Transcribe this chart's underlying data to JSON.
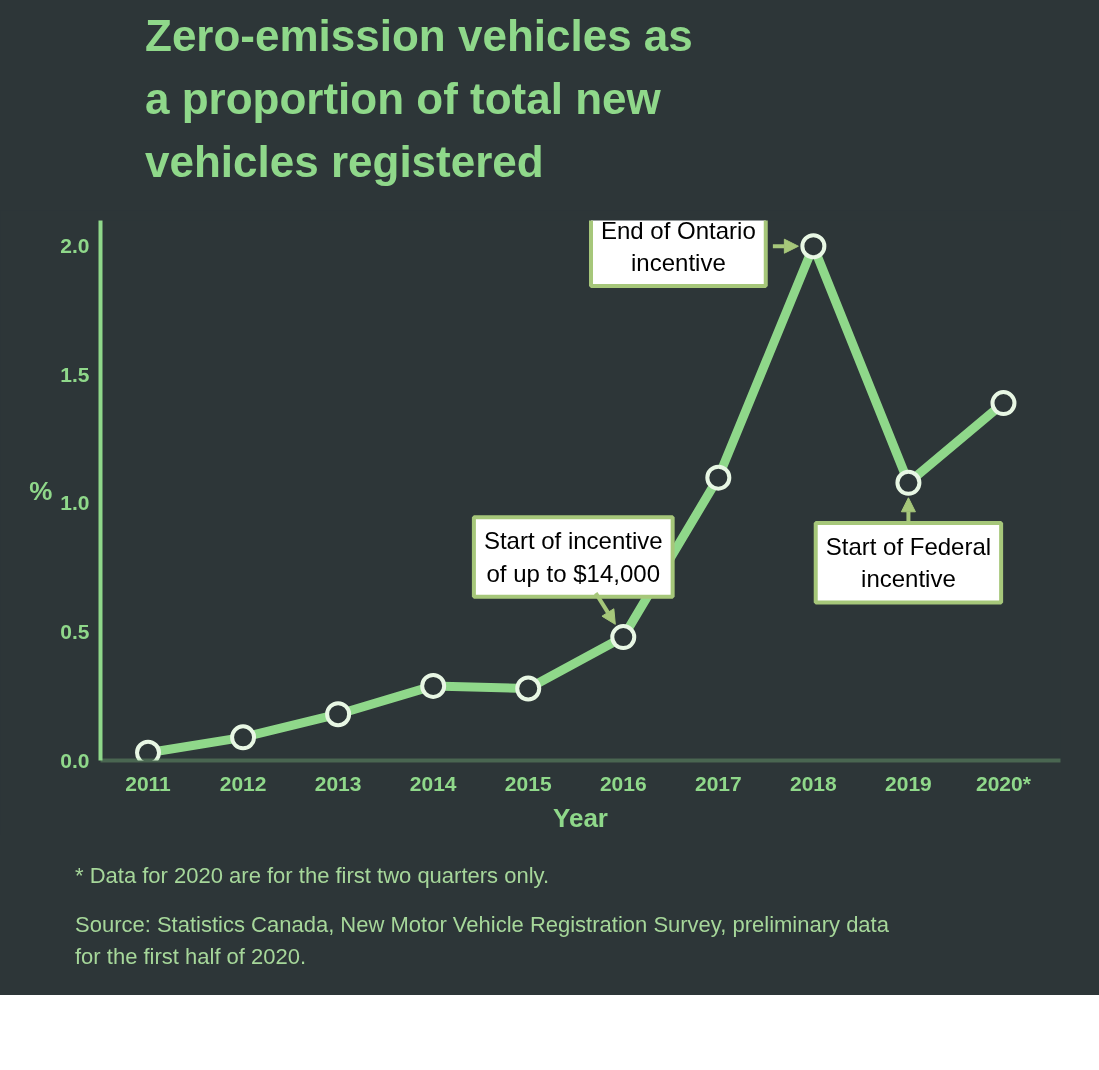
{
  "chart_data": {
    "type": "line",
    "title": "Zero-emission vehicles as a proportion of total new vehicles registered",
    "xlabel": "Year",
    "ylabel": "%",
    "categories": [
      "2011",
      "2012",
      "2013",
      "2014",
      "2015",
      "2016",
      "2017",
      "2018",
      "2019",
      "2020*"
    ],
    "series": [
      {
        "color": "#8fd88a",
        "values": [
          0.03,
          0.09,
          0.18,
          0.29,
          0.28,
          0.48,
          1.1,
          2.0,
          1.08,
          1.39
        ]
      }
    ],
    "ylim": [
      0,
      2.1
    ],
    "yticks": [
      {
        "value": 0,
        "label": "0.0"
      },
      0.5,
      {
        "value": 1,
        "label": "1.0"
      },
      1.5,
      {
        "value": 2,
        "label": "2.0"
      }
    ],
    "marker": "circle",
    "line_style": "solid",
    "grid": false,
    "annotations": [
      {
        "text": "Start of incentive of up to $14,000",
        "x": "2016",
        "y": 0.48
      },
      {
        "text": "End of Ontario incentive",
        "x": "2018",
        "y": 2.0
      },
      {
        "text": "Start of Federal incentive",
        "x": "2019",
        "y": 1.08
      },
      "* Data for 2020 are for the first two quarters only.",
      "Source: Statistics Canada, New Motor Vehicle Registration Survey, preliminary data for the first half of 2020."
    ]
  }
}
